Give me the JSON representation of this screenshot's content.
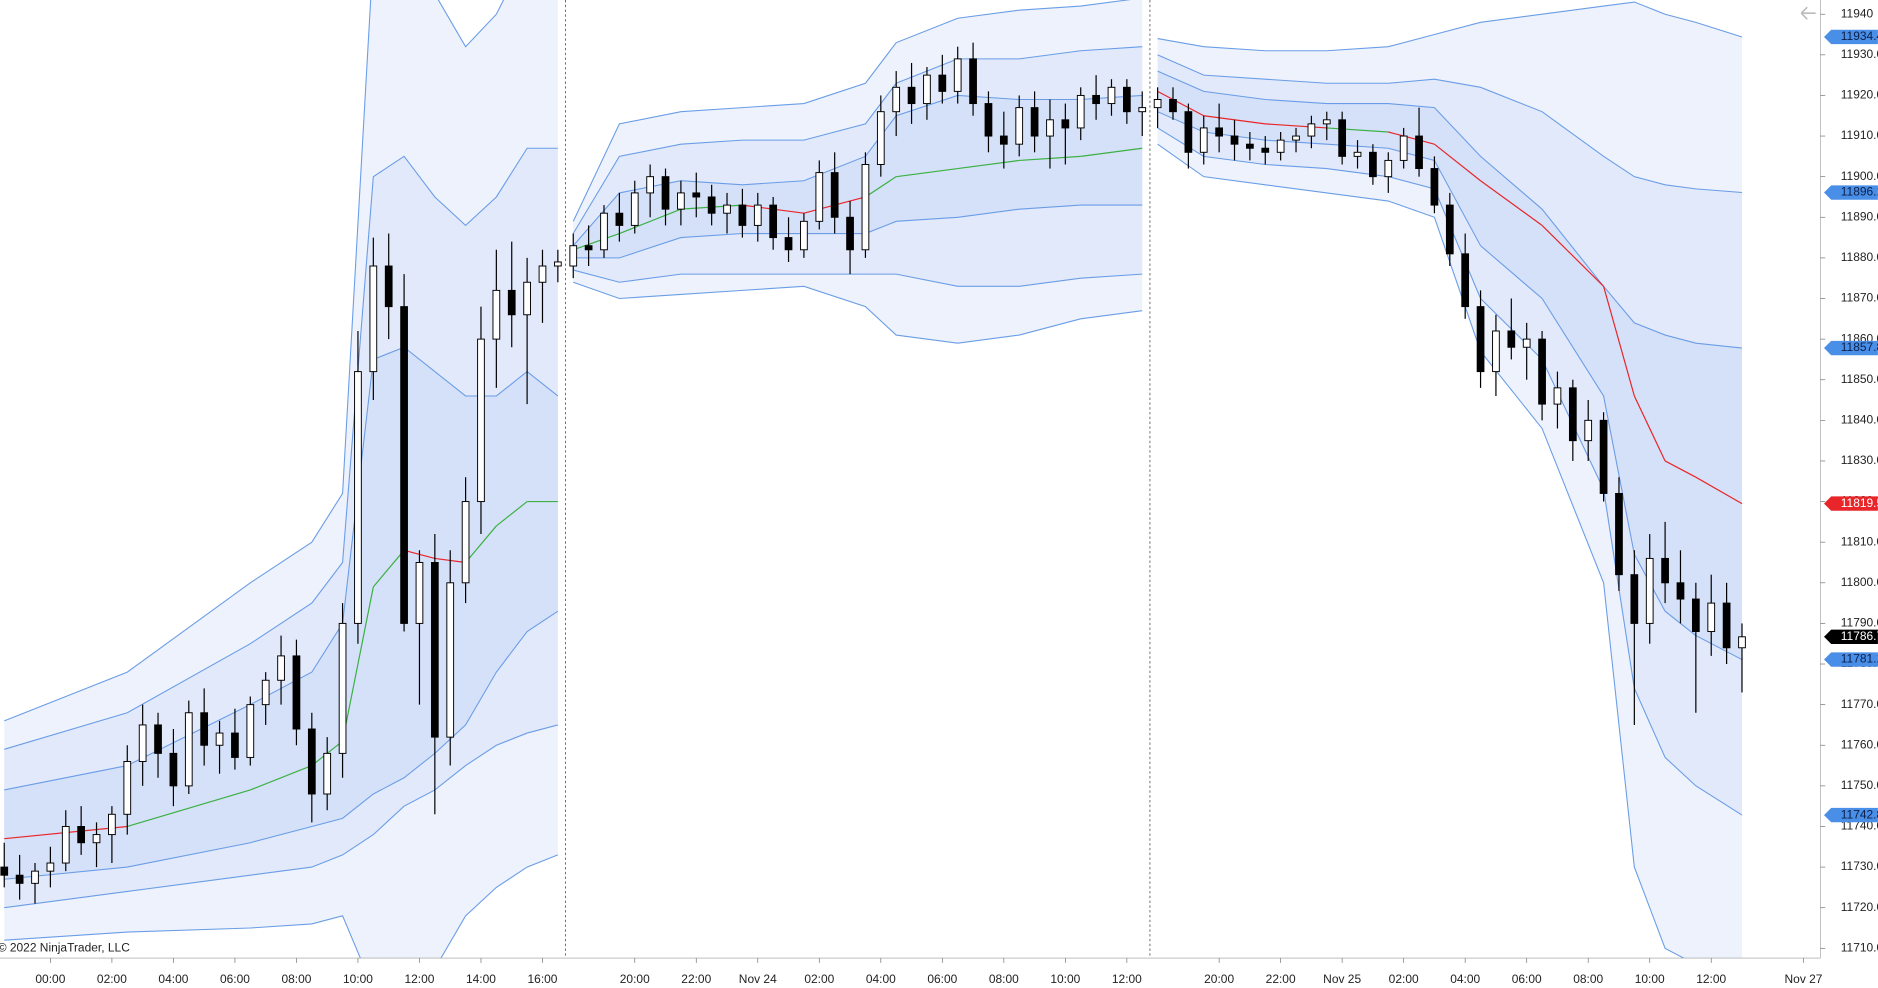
{
  "chart_data": {
    "type": "candlestick",
    "copyright": "© 2022 NinjaTrader, LLC",
    "xlim": [
      -0.27,
      118.1
    ],
    "ylim": [
      11707.6,
      11943.5
    ],
    "xticks": [
      {
        "value": 3,
        "label": "00:00"
      },
      {
        "value": 7,
        "label": "02:00"
      },
      {
        "value": 11,
        "label": "04:00"
      },
      {
        "value": 15,
        "label": "06:00"
      },
      {
        "value": 19,
        "label": "08:00"
      },
      {
        "value": 23,
        "label": "10:00"
      },
      {
        "value": 27,
        "label": "12:00"
      },
      {
        "value": 31,
        "label": "14:00"
      },
      {
        "value": 35,
        "label": "16:00"
      },
      {
        "value": 41,
        "label": "20:00"
      },
      {
        "value": 45,
        "label": "22:00"
      },
      {
        "value": 49,
        "label": "Nov 24"
      },
      {
        "value": 53,
        "label": "02:00"
      },
      {
        "value": 57,
        "label": "04:00"
      },
      {
        "value": 61,
        "label": "06:00"
      },
      {
        "value": 65,
        "label": "08:00"
      },
      {
        "value": 69,
        "label": "10:00"
      },
      {
        "value": 73,
        "label": "12:00"
      },
      {
        "value": 79,
        "label": "20:00"
      },
      {
        "value": 83,
        "label": "22:00"
      },
      {
        "value": 87,
        "label": "Nov 25"
      },
      {
        "value": 91,
        "label": "02:00"
      },
      {
        "value": 95,
        "label": "04:00"
      },
      {
        "value": 99,
        "label": "06:00"
      },
      {
        "value": 103,
        "label": "08:00"
      },
      {
        "value": 107,
        "label": "10:00"
      },
      {
        "value": 111,
        "label": "12:00"
      },
      {
        "value": 117,
        "label": "Nov 27"
      }
    ],
    "yticks": [
      {
        "value": 11710,
        "label": "11710.0"
      },
      {
        "value": 11720,
        "label": "11720.0"
      },
      {
        "value": 11730,
        "label": "11730.0"
      },
      {
        "value": 11740,
        "label": "11740.0"
      },
      {
        "value": 11750,
        "label": "11750.0"
      },
      {
        "value": 11760,
        "label": "11760.0"
      },
      {
        "value": 11770,
        "label": "11770.0"
      },
      {
        "value": 11780,
        "label": "11780.0"
      },
      {
        "value": 11790,
        "label": "11790.0"
      },
      {
        "value": 11800,
        "label": "11800.0"
      },
      {
        "value": 11810,
        "label": "11810.0"
      },
      {
        "value": 11820,
        "label": "11820.0"
      },
      {
        "value": 11830,
        "label": "11830.0"
      },
      {
        "value": 11840,
        "label": "11840.0"
      },
      {
        "value": 11850,
        "label": "11850.0"
      },
      {
        "value": 11860,
        "label": "11860.0"
      },
      {
        "value": 11870,
        "label": "11870.0"
      },
      {
        "value": 11880,
        "label": "11880.0"
      },
      {
        "value": 11890,
        "label": "11890.0"
      },
      {
        "value": 11900,
        "label": "11900.0"
      },
      {
        "value": 11910,
        "label": "11910.0"
      },
      {
        "value": 11920,
        "label": "11920.0"
      },
      {
        "value": 11930,
        "label": "11930.0"
      },
      11940
    ],
    "up_color": "#ffffff",
    "down_color": "#000000",
    "band_line_color": "#6a9de6",
    "band_fill_colors": [
      "#edf2fd",
      "#e1e9fb",
      "#d5e1f8"
    ],
    "ohlc": [
      [
        11730,
        11736,
        11725,
        11728
      ],
      [
        11728,
        11733,
        11722,
        11726
      ],
      [
        11726,
        11731,
        11721,
        11729
      ],
      [
        11729,
        11735,
        11725,
        11731
      ],
      [
        11731,
        11744,
        11729,
        11740
      ],
      [
        11740,
        11745,
        11733,
        11736
      ],
      [
        11736,
        11741,
        11730,
        11738
      ],
      [
        11738,
        11745,
        11731,
        11743
      ],
      [
        11743,
        11760,
        11738,
        11756
      ],
      [
        11756,
        11770,
        11750,
        11765
      ],
      [
        11765,
        11768,
        11752,
        11758
      ],
      [
        11758,
        11764,
        11745,
        11750
      ],
      [
        11750,
        11771,
        11748,
        11768
      ],
      [
        11768,
        11774,
        11755,
        11760
      ],
      [
        11760,
        11766,
        11753,
        11763
      ],
      [
        11763,
        11769,
        11754,
        11757
      ],
      [
        11757,
        11772,
        11755,
        11770
      ],
      [
        11770,
        11778,
        11765,
        11776
      ],
      [
        11776,
        11787,
        11770,
        11782
      ],
      [
        11782,
        11786,
        11760,
        11764
      ],
      [
        11764,
        11768,
        11741,
        11748
      ],
      [
        11748,
        11762,
        11744,
        11758
      ],
      [
        11758,
        11795,
        11752,
        11790
      ],
      [
        11790,
        11862,
        11785,
        11852
      ],
      [
        11852,
        11885,
        11845,
        11878
      ],
      [
        11878,
        11886,
        11860,
        11868
      ],
      [
        11868,
        11876,
        11788,
        11790
      ],
      [
        11790,
        11808,
        11770,
        11805
      ],
      [
        11805,
        11812,
        11743,
        11762
      ],
      [
        11762,
        11808,
        11755,
        11800
      ],
      [
        11800,
        11826,
        11795,
        11820
      ],
      [
        11820,
        11868,
        11812,
        11860
      ],
      [
        11860,
        11882,
        11848,
        11872
      ],
      [
        11872,
        11884,
        11858,
        11866
      ],
      [
        11866,
        11880,
        11844,
        11874
      ],
      [
        11874,
        11882,
        11864,
        11878
      ],
      [
        11878,
        11882,
        11874,
        11879
      ],
      [
        11878,
        11886,
        11875,
        11883
      ],
      [
        11883,
        11888,
        11878,
        11882
      ],
      [
        11882,
        11893,
        11880,
        11891
      ],
      [
        11891,
        11896,
        11884,
        11888
      ],
      [
        11888,
        11899,
        11886,
        11896
      ],
      [
        11896,
        11903,
        11890,
        11900
      ],
      [
        11900,
        11902,
        11888,
        11892
      ],
      [
        11892,
        11899,
        11888,
        11896
      ],
      [
        11896,
        11901,
        11890,
        11895
      ],
      [
        11895,
        11898,
        11888,
        11891
      ],
      [
        11891,
        11896,
        11886,
        11893
      ],
      [
        11893,
        11897,
        11885,
        11888
      ],
      [
        11888,
        11896,
        11884,
        11893
      ],
      [
        11893,
        11895,
        11882,
        11885
      ],
      [
        11885,
        11890,
        11879,
        11882
      ],
      [
        11882,
        11891,
        11880,
        11889
      ],
      [
        11889,
        11904,
        11887,
        11901
      ],
      [
        11901,
        11906,
        11886,
        11890
      ],
      [
        11890,
        11894,
        11876,
        11882
      ],
      [
        11882,
        11906,
        11880,
        11903
      ],
      [
        11903,
        11920,
        11900,
        11916
      ],
      [
        11916,
        11926,
        11910,
        11922
      ],
      [
        11922,
        11928,
        11913,
        11918
      ],
      [
        11918,
        11927,
        11914,
        11925
      ],
      [
        11925,
        11930,
        11918,
        11921
      ],
      [
        11921,
        11932,
        11918,
        11929
      ],
      [
        11929,
        11933,
        11915,
        11918
      ],
      [
        11918,
        11921,
        11906,
        11910
      ],
      [
        11910,
        11916,
        11902,
        11908
      ],
      [
        11908,
        11920,
        11905,
        11917
      ],
      [
        11917,
        11921,
        11906,
        11910
      ],
      [
        11910,
        11919,
        11902,
        11914
      ],
      [
        11914,
        11918,
        11903,
        11912
      ],
      [
        11912,
        11922,
        11909,
        11920
      ],
      [
        11920,
        11925,
        11914,
        11918
      ],
      [
        11918,
        11924,
        11915,
        11922
      ],
      [
        11922,
        11924,
        11913,
        11916
      ],
      [
        11916,
        11921,
        11910,
        11917
      ],
      [
        11917,
        11922,
        11912,
        11919
      ],
      [
        11919,
        11922,
        11914,
        11916
      ],
      [
        11916,
        11918,
        11902,
        11906
      ],
      [
        11906,
        11915,
        11903,
        11912
      ],
      [
        11912,
        11918,
        11906,
        11910
      ],
      [
        11910,
        11914,
        11904,
        11908
      ],
      [
        11908,
        11911,
        11904,
        11907
      ],
      [
        11907,
        11910,
        11903,
        11906
      ],
      [
        11906,
        11911,
        11904,
        11909
      ],
      [
        11909,
        11912,
        11906,
        11910
      ],
      [
        11910,
        11915,
        11907,
        11913
      ],
      [
        11913,
        11916,
        11909,
        11914
      ],
      [
        11914,
        11916,
        11903,
        11905
      ],
      [
        11905,
        11909,
        11902,
        11906
      ],
      [
        11906,
        11908,
        11898,
        11900
      ],
      [
        11900,
        11906,
        11896,
        11904
      ],
      [
        11904,
        11912,
        11902,
        11910
      ],
      [
        11910,
        11917,
        11900,
        11902
      ],
      [
        11902,
        11905,
        11891,
        11893
      ],
      [
        11893,
        11896,
        11878,
        11881
      ],
      [
        11881,
        11886,
        11865,
        11868
      ],
      [
        11868,
        11872,
        11848,
        11852
      ],
      [
        11852,
        11866,
        11846,
        11862
      ],
      [
        11862,
        11870,
        11855,
        11858
      ],
      [
        11858,
        11864,
        11850,
        11860
      ],
      [
        11860,
        11862,
        11840,
        11844
      ],
      [
        11844,
        11852,
        11838,
        11848
      ],
      [
        11848,
        11850,
        11830,
        11835
      ],
      [
        11835,
        11845,
        11830,
        11840
      ],
      [
        11840,
        11842,
        11820,
        11822
      ],
      [
        11822,
        11826,
        11798,
        11802
      ],
      [
        11802,
        11808,
        11765,
        11790
      ],
      [
        11790,
        11812,
        11785,
        11806
      ],
      [
        11806,
        11815,
        11795,
        11800
      ],
      [
        11800,
        11808,
        11790,
        11796
      ],
      [
        11796,
        11800,
        11768,
        11788
      ],
      [
        11788,
        11802,
        11782,
        11795
      ],
      [
        11795,
        11800,
        11780,
        11784
      ],
      [
        11784,
        11790,
        11773,
        11786.7
      ]
    ],
    "sessions": [
      {
        "x": [
          0,
          8,
          16,
          20,
          22,
          24,
          26,
          28,
          30,
          32,
          34,
          36
        ],
        "vwap": [
          11737,
          11740,
          11749,
          11755,
          11761,
          11799,
          11808,
          11806,
          11805,
          11814,
          11820,
          11820
        ],
        "vwap_colors": [
          "#e8262a",
          "#3cb043",
          "#3cb043",
          "#3cb043",
          "#3cb043",
          "#3cb043",
          "#e8262a",
          "#e8262a",
          "#3cb043",
          "#3cb043",
          "#3cb043"
        ],
        "u1": [
          11749,
          11755,
          11770,
          11778,
          11790,
          11855,
          11858,
          11852,
          11846,
          11846,
          11852,
          11846
        ],
        "l1": [
          11727,
          11730,
          11736,
          11740,
          11742,
          11748,
          11752,
          11758,
          11765,
          11778,
          11788,
          11793
        ],
        "u2": [
          11759,
          11768,
          11785,
          11795,
          11805,
          11900,
          11905,
          11895,
          11888,
          11895,
          11907,
          11907
        ],
        "l2": [
          11720,
          11724,
          11728,
          11730,
          11733,
          11738,
          11745,
          11749,
          11755,
          11760,
          11763,
          11765
        ],
        "u3": [
          11766,
          11778,
          11800,
          11810,
          11822,
          11955,
          11960,
          11945,
          11932,
          11940,
          11955,
          11960
        ],
        "l3": [
          11712,
          11714,
          11715,
          11716,
          11718,
          11700,
          11698,
          11705,
          11718,
          11725,
          11730,
          11733
        ]
      },
      {
        "x": [
          37,
          40,
          44,
          48,
          52,
          56,
          58,
          62,
          66,
          70,
          74
        ],
        "vwap": [
          11882,
          11886,
          11892,
          11893,
          11891,
          11895,
          11900,
          11902,
          11904,
          11905,
          11907
        ],
        "vwap_colors": [
          "#3cb043",
          "#3cb043",
          "#3cb043",
          "#e8262a",
          "#e8262a",
          "#3cb043",
          "#3cb043",
          "#3cb043",
          "#3cb043",
          "#3cb043"
        ],
        "u1": [
          11883,
          11896,
          11899,
          11898,
          11899,
          11905,
          11915,
          11920,
          11919,
          11919,
          11920
        ],
        "l1": [
          11880,
          11880,
          11885,
          11886,
          11886,
          11886,
          11889,
          11890,
          11892,
          11893,
          11893
        ],
        "u2": [
          11886,
          11905,
          11908,
          11909,
          11909,
          11913,
          11923,
          11929,
          11929,
          11931,
          11932
        ],
        "l2": [
          11877,
          11874,
          11876,
          11876,
          11876,
          11876,
          11876,
          11873,
          11873,
          11875,
          11876
        ],
        "u3": [
          11889,
          11913,
          11916,
          11917,
          11918,
          11923,
          11933,
          11939,
          11941,
          11942,
          11944
        ],
        "l3": [
          11874,
          11870,
          11871,
          11872,
          11873,
          11868,
          11861,
          11859,
          11861,
          11865,
          11867
        ]
      },
      {
        "x": [
          75,
          78,
          82,
          86,
          90,
          93,
          96,
          100,
          104,
          106,
          108,
          110,
          113
        ],
        "vwap": [
          11921,
          11915,
          11913,
          11912,
          11911,
          11908,
          11899,
          11888,
          11873,
          11846,
          11830,
          11826,
          11819.5
        ],
        "vwap_colors": [
          "#e8262a",
          "#e8262a",
          "#e8262a",
          "#3cb043",
          "#e8262a",
          "#e8262a",
          "#e8262a",
          "#e8262a",
          "#e8262a",
          "#e8262a",
          "#e8262a",
          "#e8262a"
        ],
        "u1": [
          11926,
          11921,
          11919,
          11918,
          11918,
          11917,
          11905,
          11892,
          11873,
          11864,
          11861,
          11859,
          11857.8
        ],
        "l1": [
          11916,
          11911,
          11909,
          11908,
          11907,
          11904,
          11883,
          11870,
          11846,
          11807,
          11793,
          11787,
          11781.1
        ],
        "u2": [
          11930,
          11925,
          11924,
          11923,
          11923,
          11924,
          11922,
          11916,
          11905,
          11900,
          11898,
          11897,
          11896.1
        ],
        "l2": [
          11912,
          11905,
          11903,
          11902,
          11900,
          11897,
          11870,
          11855,
          11823,
          11774,
          11757,
          11750,
          11742.8
        ],
        "u3": [
          11934,
          11932,
          11931,
          11931,
          11932,
          11935,
          11938,
          11940,
          11942,
          11943,
          11940,
          11938,
          11934.4
        ],
        "l3": [
          11908,
          11900,
          11898,
          11896,
          11894,
          11890,
          11857,
          11838,
          11800,
          11730,
          11710,
          11706,
          11704.5
        ]
      }
    ],
    "markers": [
      {
        "value": 11934.4,
        "color": "#4a8fe7"
      },
      {
        "value": 11896.1,
        "color": "#4a8fe7"
      },
      {
        "value": 11857.8,
        "color": "#4a8fe7"
      },
      {
        "value": 11819.5,
        "color": "#e8262a"
      },
      {
        "value": 11786.7,
        "color": "#000000"
      },
      {
        "value": 11781.1,
        "color": "#4a8fe7"
      },
      {
        "value": 11742.8,
        "color": "#4a8fe7"
      }
    ]
  }
}
